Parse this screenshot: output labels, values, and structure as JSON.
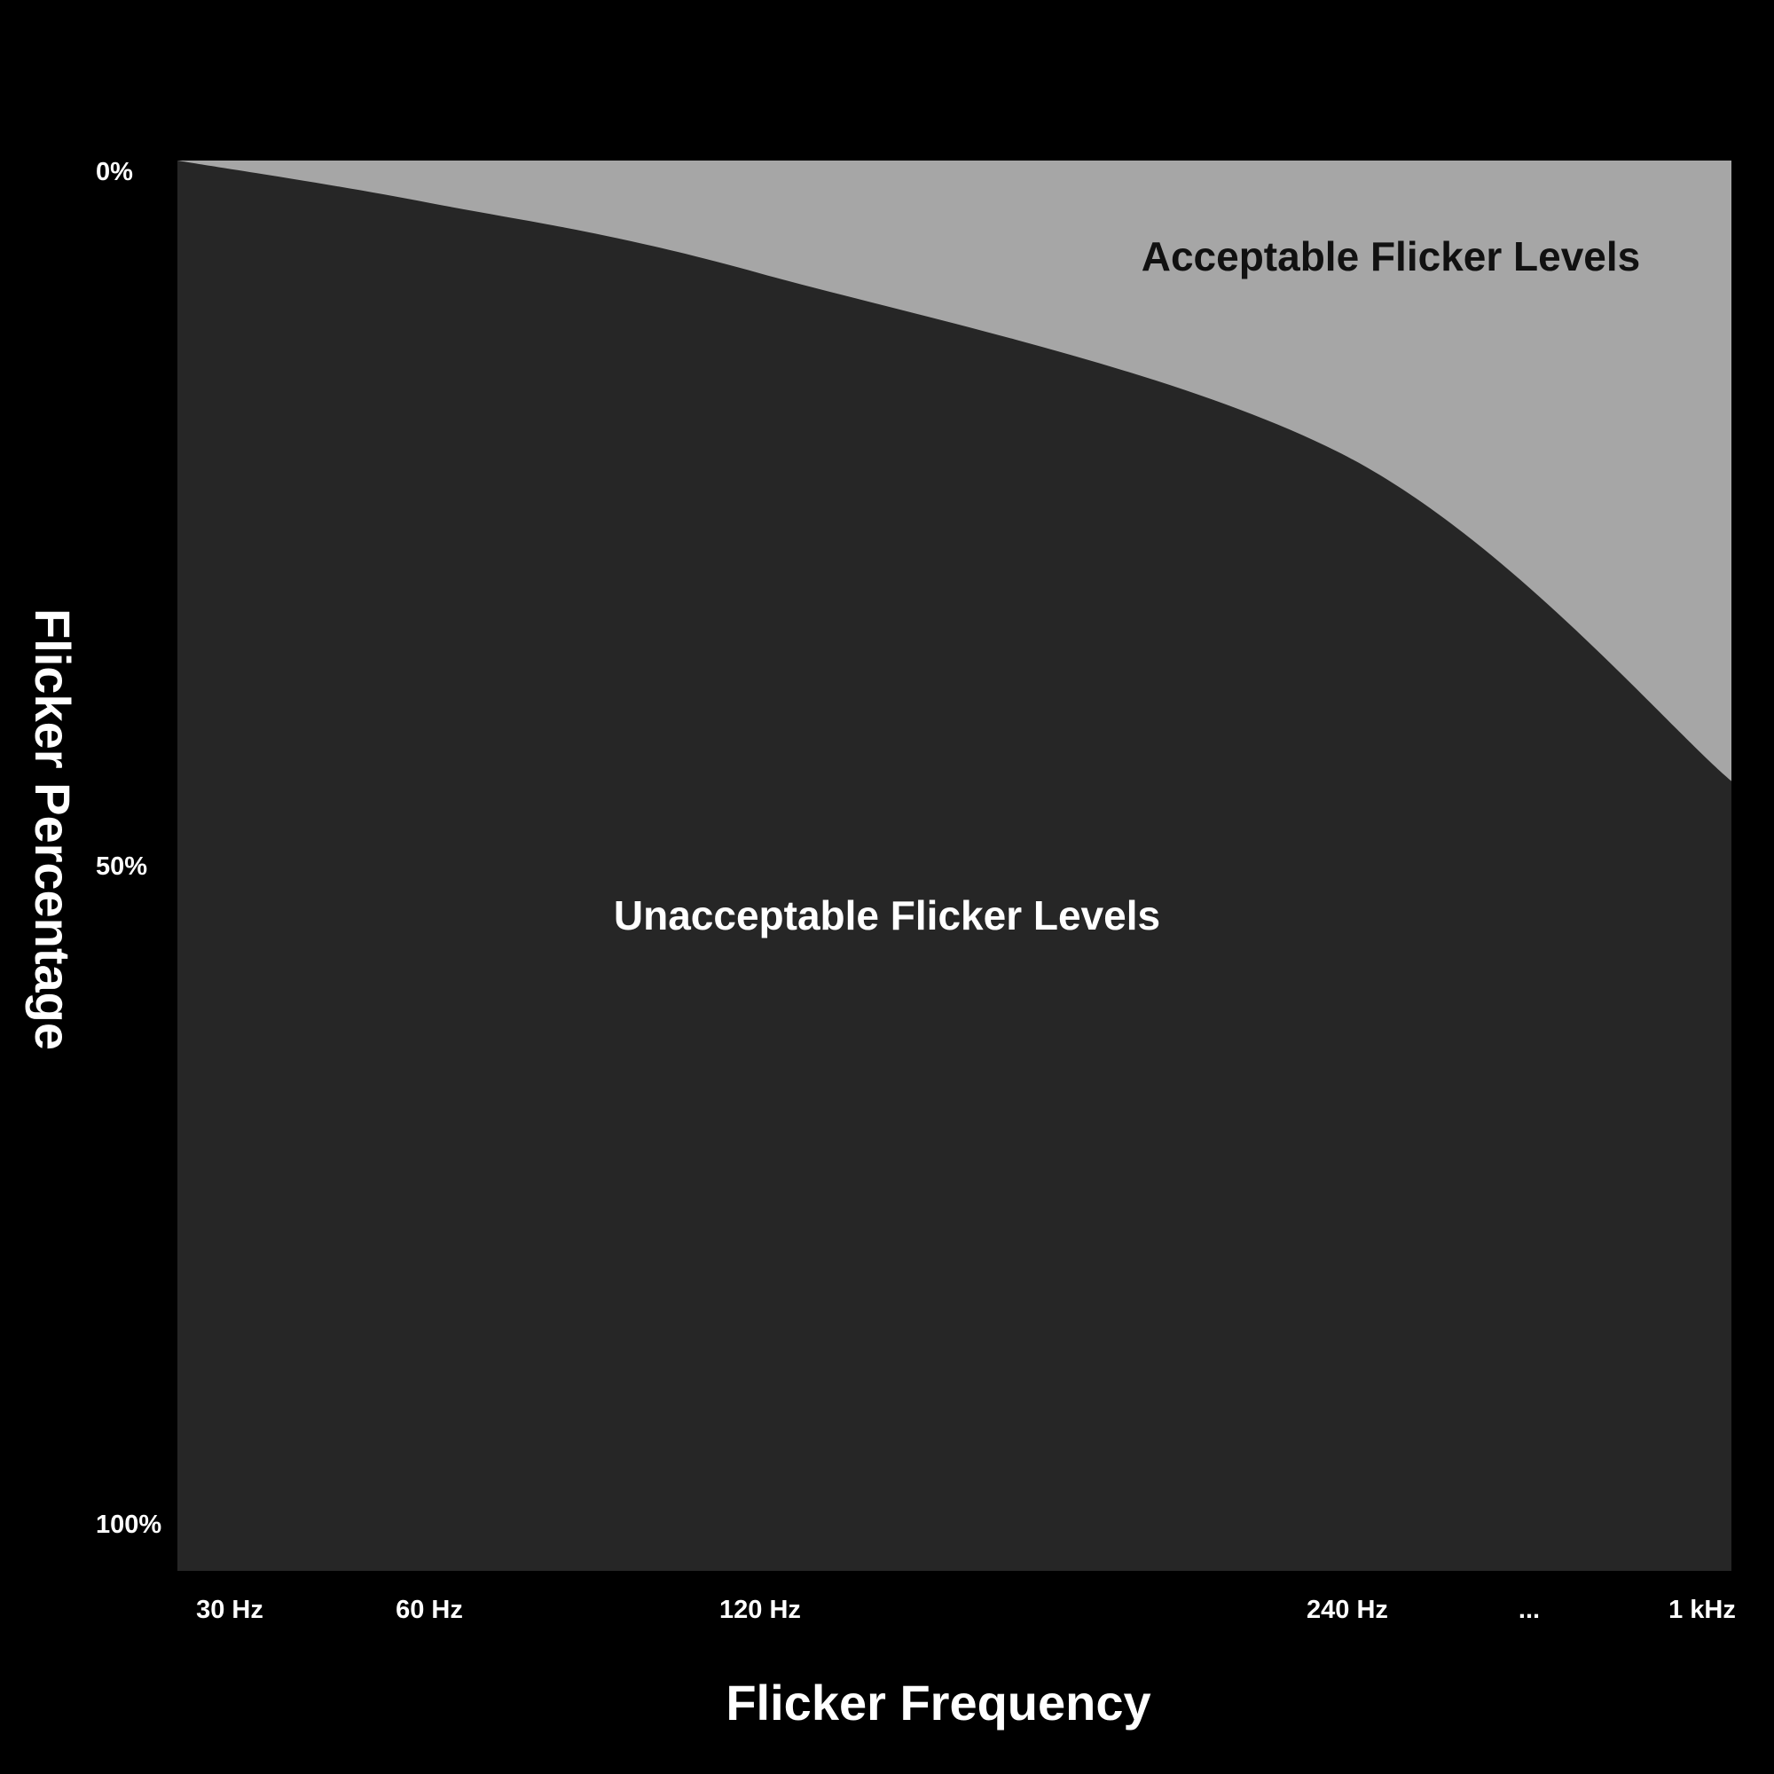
{
  "chart_data": {
    "type": "area",
    "title": "",
    "xlabel": "Flicker Frequency",
    "ylabel": "Flicker Percentage",
    "x_tick_labels": [
      "30 Hz",
      "60 Hz",
      "120 Hz",
      "240 Hz",
      "...",
      "1 kHz"
    ],
    "y_tick_labels": [
      "0%",
      "50%",
      "100%"
    ],
    "ylim": [
      0,
      100
    ],
    "y_inverted": true,
    "grid": false,
    "regions": [
      {
        "name": "Acceptable Flicker Levels",
        "color": "#a6a6a6",
        "text_color": "#111111"
      },
      {
        "name": "Unacceptable Flicker Levels",
        "color": "#262626",
        "text_color": "#ffffff"
      }
    ],
    "boundary": {
      "x": [
        "30 Hz",
        "60 Hz",
        "120 Hz",
        "240 Hz",
        "1 kHz"
      ],
      "y": [
        0,
        3,
        8,
        21,
        44
      ]
    }
  },
  "colors": {
    "background": "#000000",
    "acceptable": "#a6a6a6",
    "unacceptable": "#262626",
    "text": "#ffffff"
  }
}
